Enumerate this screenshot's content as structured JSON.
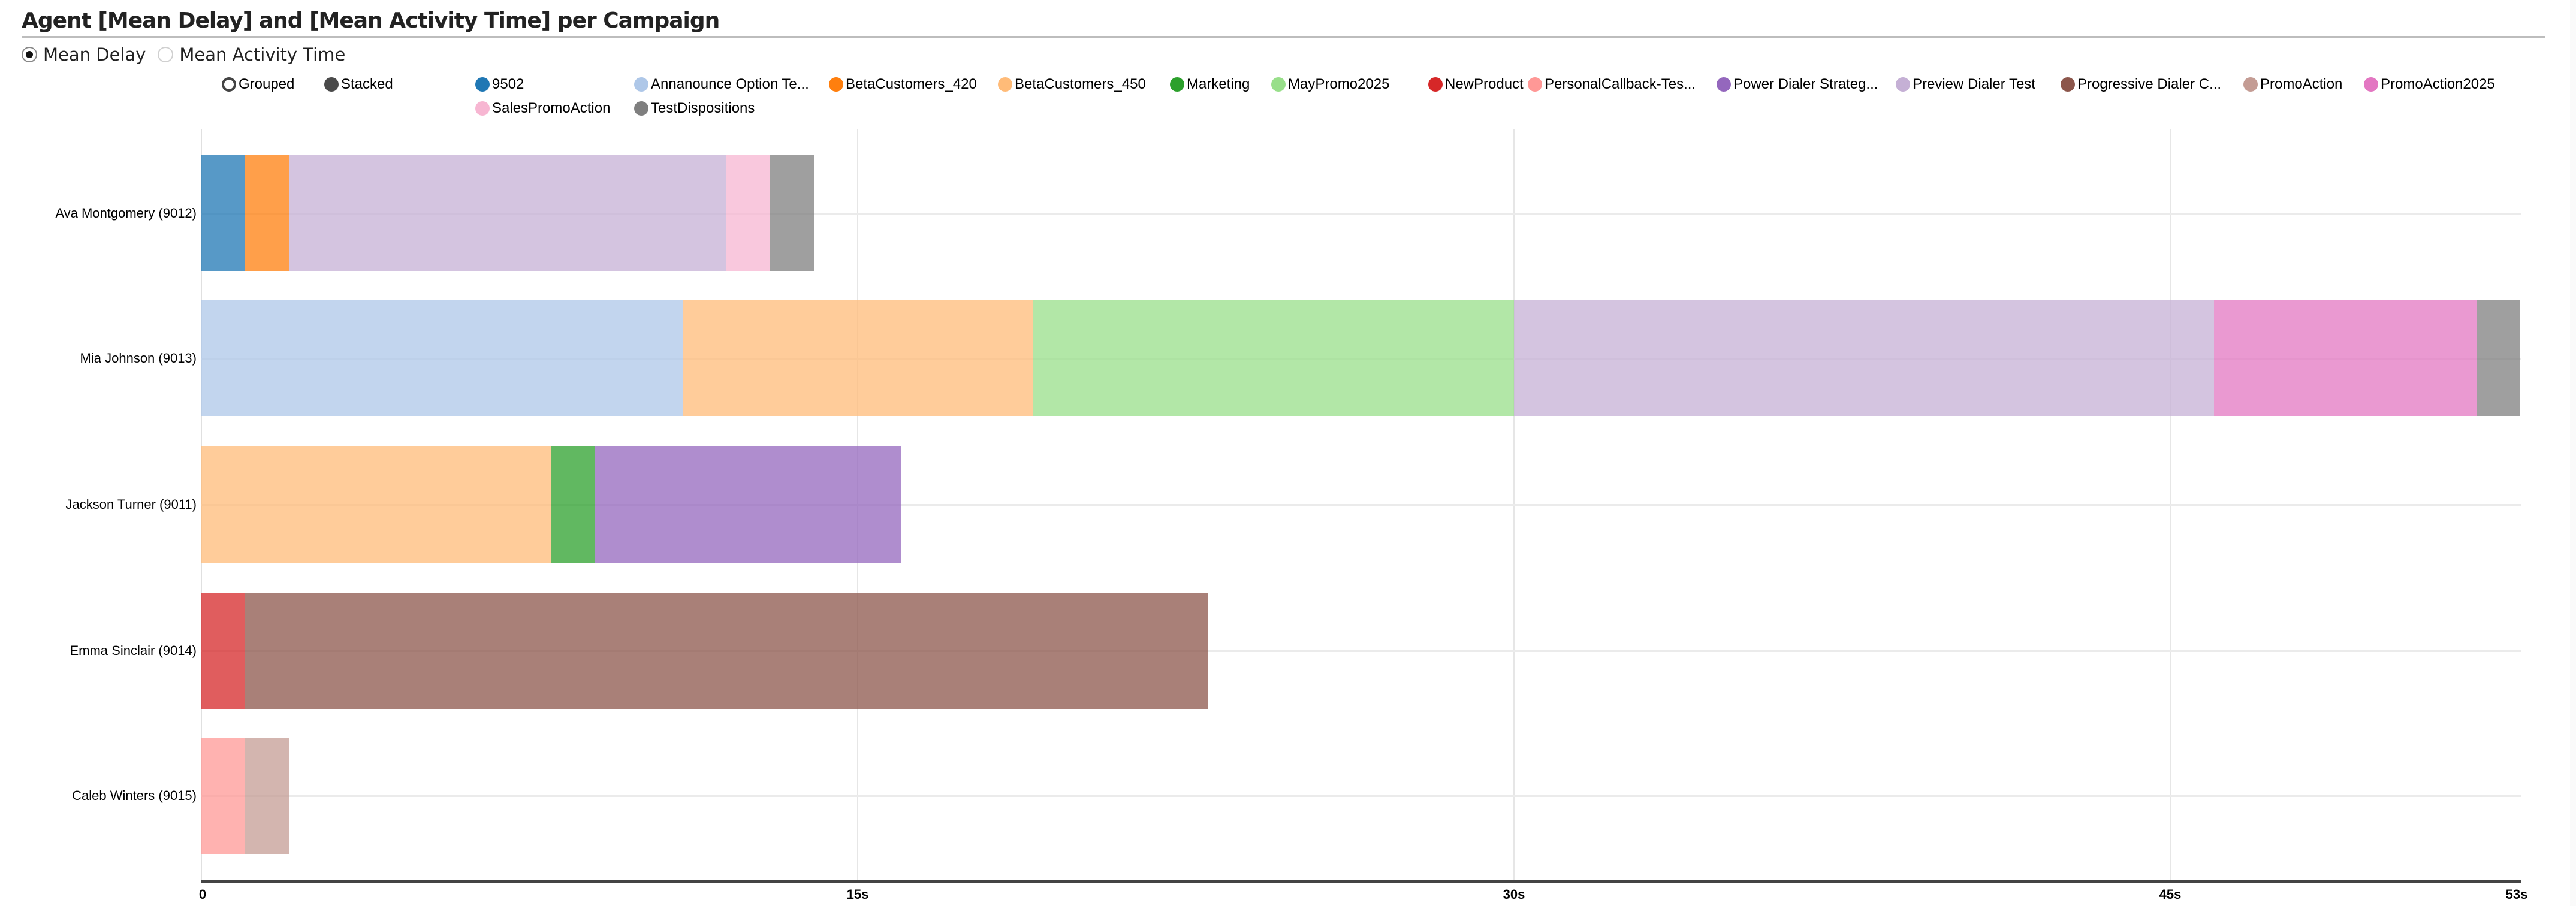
{
  "title": "Agent [Mean Delay] and [Mean Activity Time] per Campaign",
  "metric_toggle": {
    "options": [
      {
        "label": "Mean Delay",
        "checked": true
      },
      {
        "label": "Mean Activity Time",
        "checked": false
      }
    ]
  },
  "mode_toggle": {
    "options": [
      {
        "label": "Grouped",
        "selected": false
      },
      {
        "label": "Stacked",
        "selected": true
      }
    ]
  },
  "legend": [
    {
      "label": "9502",
      "color": "#1f77b4"
    },
    {
      "label": "Annanounce Option Te...",
      "color": "#aec7e8"
    },
    {
      "label": "BetaCustomers_420",
      "color": "#ff7f0e"
    },
    {
      "label": "BetaCustomers_450",
      "color": "#ffbb78"
    },
    {
      "label": "Marketing",
      "color": "#2ca02c"
    },
    {
      "label": "MayPromo2025",
      "color": "#98df8a"
    },
    {
      "label": "NewProduct",
      "color": "#d62728"
    },
    {
      "label": "PersonalCallback-Tes...",
      "color": "#ff9896"
    },
    {
      "label": "Power Dialer Strateg...",
      "color": "#9467bd"
    },
    {
      "label": "Preview Dialer Test",
      "color": "#c5b0d5"
    },
    {
      "label": "Progressive Dialer C...",
      "color": "#8c564b"
    },
    {
      "label": "PromoAction",
      "color": "#c49c94"
    },
    {
      "label": "PromoAction2025",
      "color": "#e377c2"
    },
    {
      "label": "SalesPromoAction",
      "color": "#f7b6d2"
    },
    {
      "label": "TestDispositions",
      "color": "#7f7f7f"
    }
  ],
  "x_ticks": [
    "0",
    "15s",
    "30s",
    "45s",
    "53s"
  ],
  "chart_data": {
    "type": "bar",
    "orientation": "horizontal",
    "stacked": true,
    "title": "Agent [Mean Delay] and [Mean Activity Time] per Campaign",
    "metric": "Mean Delay",
    "xlabel": "",
    "ylabel": "",
    "unit": "s",
    "xlim": [
      0,
      53
    ],
    "x_ticks": [
      0,
      15,
      30,
      45,
      53
    ],
    "grid": true,
    "legend_position": "top",
    "categories": [
      "Ava Montgomery (9012)",
      "Mia Johnson (9013)",
      "Jackson Turner (9011)",
      "Emma Sinclair (9014)",
      "Caleb Winters (9015)"
    ],
    "series": [
      {
        "name": "9502",
        "color": "#1f77b4",
        "values": [
          1,
          0,
          0,
          0,
          0
        ]
      },
      {
        "name": "Annanounce Option Te...",
        "color": "#aec7e8",
        "values": [
          0,
          11,
          0,
          0,
          0
        ]
      },
      {
        "name": "BetaCustomers_420",
        "color": "#ff7f0e",
        "values": [
          1,
          0,
          0,
          0,
          0
        ]
      },
      {
        "name": "BetaCustomers_450",
        "color": "#ffbb78",
        "values": [
          0,
          8,
          8,
          0,
          0
        ]
      },
      {
        "name": "Marketing",
        "color": "#2ca02c",
        "values": [
          0,
          0,
          1,
          0,
          0
        ]
      },
      {
        "name": "MayPromo2025",
        "color": "#98df8a",
        "values": [
          0,
          11,
          0,
          0,
          0
        ]
      },
      {
        "name": "NewProduct",
        "color": "#d62728",
        "values": [
          0,
          0,
          0,
          1,
          0
        ]
      },
      {
        "name": "PersonalCallback-Tes...",
        "color": "#ff9896",
        "values": [
          0,
          0,
          0,
          0,
          1
        ]
      },
      {
        "name": "Power Dialer Strateg...",
        "color": "#9467bd",
        "values": [
          0,
          0,
          7,
          0,
          0
        ]
      },
      {
        "name": "Preview Dialer Test",
        "color": "#c5b0d5",
        "values": [
          10,
          16,
          0,
          0,
          0
        ]
      },
      {
        "name": "Progressive Dialer C...",
        "color": "#8c564b",
        "values": [
          0,
          0,
          0,
          22,
          0
        ]
      },
      {
        "name": "PromoAction",
        "color": "#c49c94",
        "values": [
          0,
          0,
          0,
          0,
          1
        ]
      },
      {
        "name": "PromoAction2025",
        "color": "#e377c2",
        "values": [
          0,
          6,
          0,
          0,
          0
        ]
      },
      {
        "name": "SalesPromoAction",
        "color": "#f7b6d2",
        "values": [
          1,
          0,
          0,
          0,
          0
        ]
      },
      {
        "name": "TestDispositions",
        "color": "#7f7f7f",
        "values": [
          1,
          1,
          0,
          0,
          0
        ]
      }
    ],
    "totals": [
      14,
      53,
      16,
      23,
      2
    ]
  },
  "rows": [
    {
      "label": "Ava Montgomery (9012)",
      "segments": [
        {
          "campaign": "9502",
          "value": 1,
          "color": "#1f77b4"
        },
        {
          "campaign": "BetaCustomers_420",
          "value": 1,
          "color": "#ff7f0e"
        },
        {
          "campaign": "Preview Dialer Test",
          "value": 10,
          "color": "#c5b0d5"
        },
        {
          "campaign": "SalesPromoAction",
          "value": 1,
          "color": "#f7b6d2"
        },
        {
          "campaign": "TestDispositions",
          "value": 1,
          "color": "#7f7f7f"
        }
      ]
    },
    {
      "label": "Mia Johnson (9013)",
      "segments": [
        {
          "campaign": "Annanounce Option Te...",
          "value": 11,
          "color": "#aec7e8"
        },
        {
          "campaign": "BetaCustomers_450",
          "value": 8,
          "color": "#ffbb78"
        },
        {
          "campaign": "MayPromo2025",
          "value": 11,
          "color": "#98df8a"
        },
        {
          "campaign": "Preview Dialer Test",
          "value": 16,
          "color": "#c5b0d5"
        },
        {
          "campaign": "PromoAction2025",
          "value": 6,
          "color": "#e377c2"
        },
        {
          "campaign": "TestDispositions",
          "value": 1,
          "color": "#7f7f7f"
        }
      ]
    },
    {
      "label": "Jackson Turner (9011)",
      "segments": [
        {
          "campaign": "BetaCustomers_450",
          "value": 8,
          "color": "#ffbb78"
        },
        {
          "campaign": "Marketing",
          "value": 1,
          "color": "#2ca02c"
        },
        {
          "campaign": "Power Dialer Strateg...",
          "value": 7,
          "color": "#9467bd"
        }
      ]
    },
    {
      "label": "Emma Sinclair (9014)",
      "segments": [
        {
          "campaign": "NewProduct",
          "value": 1,
          "color": "#d62728"
        },
        {
          "campaign": "Progressive Dialer C...",
          "value": 22,
          "color": "#8c564b"
        }
      ]
    },
    {
      "label": "Caleb Winters (9015)",
      "segments": [
        {
          "campaign": "PersonalCallback-Tes...",
          "value": 1,
          "color": "#ff9896"
        },
        {
          "campaign": "PromoAction",
          "value": 1,
          "color": "#c49c94"
        }
      ]
    }
  ]
}
